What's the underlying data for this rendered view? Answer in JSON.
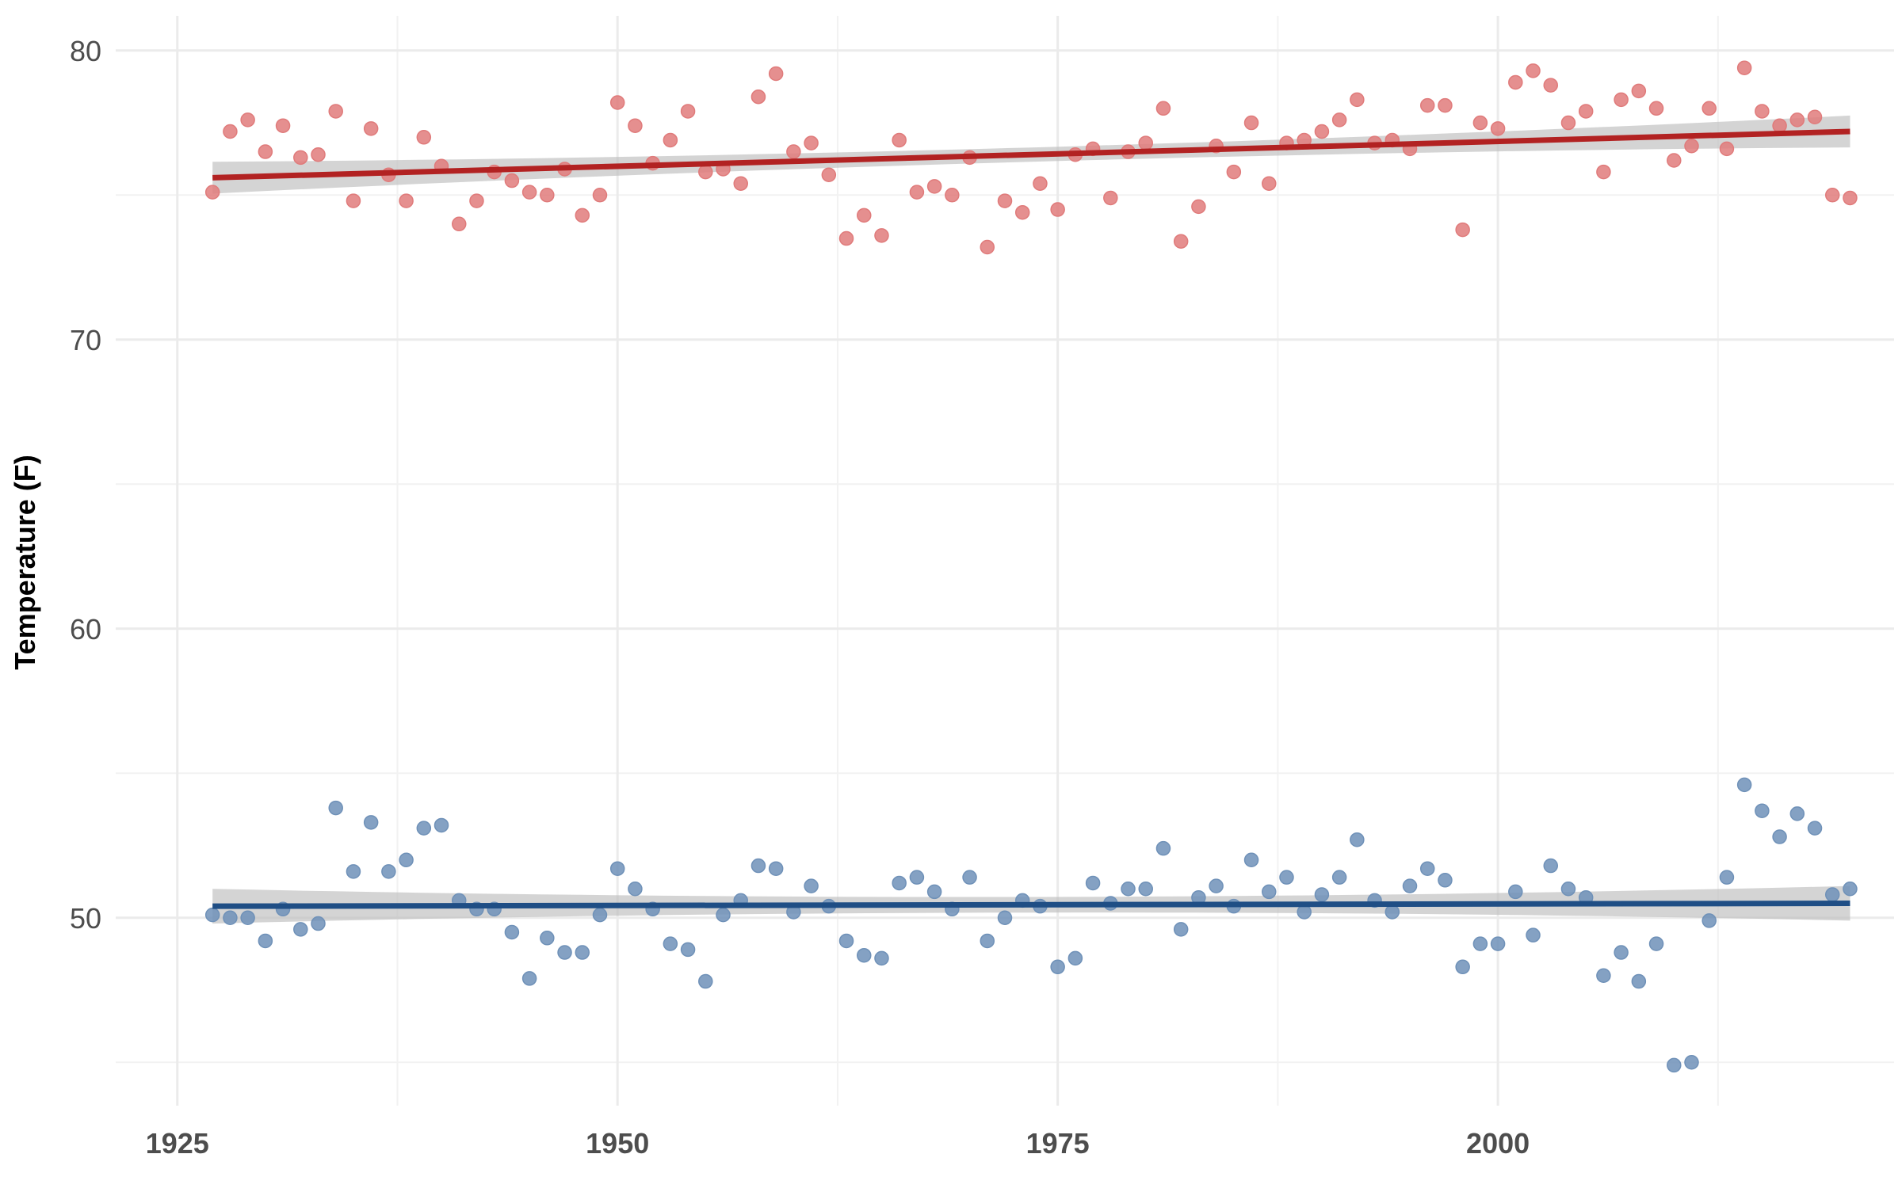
{
  "chart_data": {
    "type": "scatter",
    "title": "",
    "xlabel": "",
    "ylabel": "Temperature (F)",
    "xlim": [
      1921.5,
      2022.5
    ],
    "ylim": [
      43.5,
      81.2
    ],
    "x_major_ticks": [
      1925,
      1950,
      1975,
      2000
    ],
    "x_minor_ticks": [
      1937.5,
      1962.5,
      1987.5,
      2012.5
    ],
    "y_major_ticks": [
      50,
      60,
      70,
      80
    ],
    "y_minor_ticks": [
      45,
      55,
      65,
      75
    ],
    "grid": true,
    "legend": "none",
    "x": [
      1927,
      1928,
      1929,
      1930,
      1931,
      1932,
      1933,
      1934,
      1935,
      1936,
      1937,
      1938,
      1939,
      1940,
      1941,
      1942,
      1943,
      1944,
      1945,
      1946,
      1947,
      1948,
      1949,
      1950,
      1951,
      1952,
      1953,
      1954,
      1955,
      1956,
      1957,
      1958,
      1959,
      1960,
      1961,
      1962,
      1963,
      1964,
      1965,
      1966,
      1967,
      1968,
      1969,
      1970,
      1971,
      1972,
      1973,
      1974,
      1975,
      1976,
      1977,
      1978,
      1979,
      1980,
      1981,
      1982,
      1983,
      1984,
      1985,
      1986,
      1987,
      1988,
      1989,
      1990,
      1991,
      1992,
      1993,
      1994,
      1995,
      1996,
      1997,
      1998,
      1999,
      2000,
      2001,
      2002,
      2003,
      2004,
      2005,
      2006,
      2007,
      2008,
      2009,
      2010,
      2011,
      2012,
      2013,
      2014,
      2015,
      2016,
      2017,
      2018,
      2019,
      2020
    ],
    "series": [
      {
        "color": "#e07b7b",
        "fit_color": "#b22222",
        "values": [
          75.1,
          77.2,
          77.6,
          76.5,
          77.4,
          76.3,
          76.4,
          77.9,
          74.8,
          77.3,
          75.7,
          74.8,
          77.0,
          76.0,
          74.0,
          74.8,
          75.8,
          75.5,
          75.1,
          75.0,
          75.9,
          74.3,
          75.0,
          78.2,
          77.4,
          76.1,
          76.9,
          77.9,
          75.8,
          75.9,
          75.4,
          78.4,
          79.2,
          76.5,
          76.8,
          75.7,
          73.5,
          74.3,
          73.6,
          76.9,
          75.1,
          75.3,
          75.0,
          76.3,
          73.2,
          74.8,
          74.4,
          75.4,
          74.5,
          76.4,
          76.6,
          74.9,
          76.5,
          76.8,
          78.0,
          73.4,
          74.6,
          76.7,
          75.8,
          77.5,
          75.4,
          76.8,
          76.9,
          77.2,
          77.6,
          78.3,
          76.8,
          76.9,
          76.6,
          78.1,
          78.1,
          73.8,
          77.5,
          77.3,
          78.9,
          79.3,
          78.8,
          77.5,
          77.9,
          75.8,
          78.3,
          78.6,
          78.0,
          76.2,
          76.7,
          78.0,
          76.6,
          79.4,
          77.9,
          77.4,
          77.6,
          77.7,
          75.0,
          74.9
        ],
        "fit": {
          "start": 75.6,
          "end": 77.2,
          "band": 0.55
        }
      },
      {
        "color": "#6f91b8",
        "fit_color": "#1f4e85",
        "values": [
          50.1,
          50.0,
          50.0,
          49.2,
          50.3,
          49.6,
          49.8,
          53.8,
          51.6,
          53.3,
          51.6,
          52.0,
          53.1,
          53.2,
          50.6,
          50.3,
          50.3,
          49.5,
          47.9,
          49.3,
          48.8,
          48.8,
          50.1,
          51.7,
          51.0,
          50.3,
          49.1,
          48.9,
          47.8,
          50.1,
          50.6,
          51.8,
          51.7,
          50.2,
          51.1,
          50.4,
          49.2,
          48.7,
          48.6,
          51.2,
          51.4,
          50.9,
          50.3,
          51.4,
          49.2,
          50.0,
          50.6,
          50.4,
          48.3,
          48.6,
          51.2,
          50.5,
          51.0,
          51.0,
          52.4,
          49.6,
          50.7,
          51.1,
          50.4,
          52.0,
          50.9,
          51.4,
          50.2,
          50.8,
          51.4,
          52.7,
          50.6,
          50.2,
          51.1,
          51.7,
          51.3,
          48.3,
          49.1,
          49.1,
          50.9,
          49.4,
          51.8,
          51.0,
          50.7,
          48.0,
          48.8,
          47.8,
          49.1,
          44.9,
          45.0,
          49.9,
          51.4,
          54.6,
          53.7,
          52.8,
          53.6,
          53.1,
          50.8,
          51.0
        ],
        "fit": {
          "start": 50.4,
          "end": 50.5,
          "band": 0.6
        }
      }
    ]
  }
}
